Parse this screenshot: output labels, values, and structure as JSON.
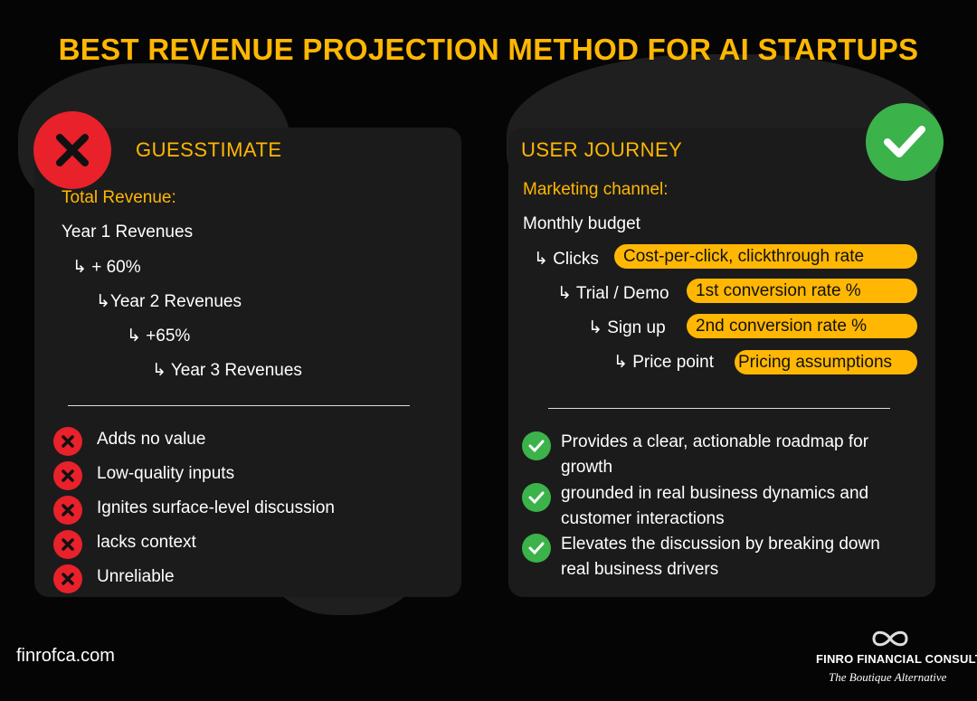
{
  "title": "BEST REVENUE PROJECTION METHOD FOR AI STARTUPS",
  "left": {
    "heading": "GUESSTIMATE",
    "label": "Total Revenue:",
    "tree": [
      "Year 1 Revenues",
      "+ 60%",
      "Year 2 Revenues",
      "+65%",
      "Year 3 Revenues"
    ],
    "cons": [
      "Adds no value",
      "Low-quality inputs",
      "Ignites surface-level discussion",
      "lacks context",
      "Unreliable"
    ]
  },
  "right": {
    "heading": "USER JOURNEY",
    "label": "Marketing channel:",
    "root": "Monthly budget",
    "steps": [
      {
        "name": "Clicks",
        "tag": "Cost-per-click, clickthrough rate"
      },
      {
        "name": "Trial / Demo",
        "tag": "1st conversion rate %"
      },
      {
        "name": "Sign up",
        "tag": "2nd conversion rate %"
      },
      {
        "name": "Price point",
        "tag": "Pricing assumptions"
      }
    ],
    "pros": [
      [
        "Provides a clear, actionable roadmap for",
        "growth"
      ],
      [
        "grounded in real business dynamics and",
        "customer interactions"
      ],
      [
        "Elevates the discussion by breaking down",
        "real business drivers"
      ]
    ]
  },
  "footer": {
    "website": "finrofca.com",
    "brand": "FINRO FINANCIAL CONSULTING",
    "tagline": "The Boutique Alternative"
  },
  "colors": {
    "accent": "#ffb703",
    "bad": "#e8212b",
    "good": "#3cb24a"
  }
}
